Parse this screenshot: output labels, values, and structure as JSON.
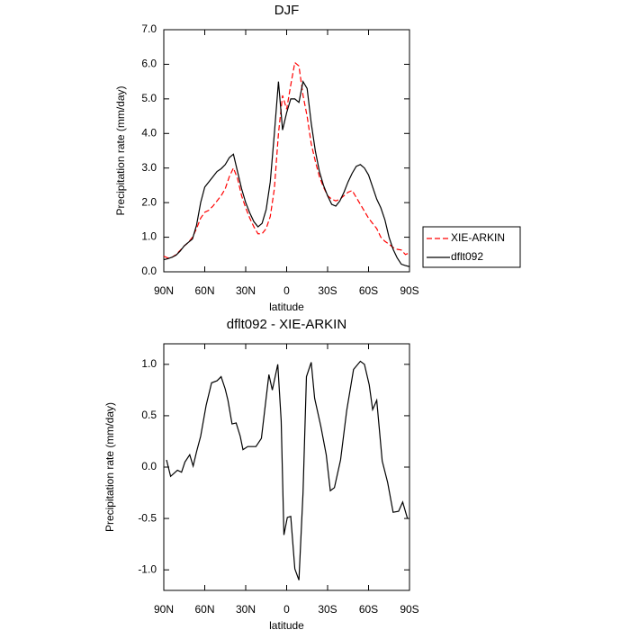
{
  "chart_data": [
    {
      "type": "line",
      "title": "DJF",
      "x_label": "latitude",
      "y_label": "Precipitation rate (mm/day)",
      "x": [
        90,
        87,
        84,
        81,
        78,
        75,
        72,
        69,
        66,
        63,
        60,
        57,
        54,
        51,
        48,
        45,
        42,
        39,
        36,
        33,
        30,
        27,
        24,
        21,
        18,
        15,
        12,
        9,
        6,
        3,
        0,
        -3,
        -6,
        -9,
        -12,
        -15,
        -18,
        -21,
        -24,
        -27,
        -30,
        -33,
        -36,
        -39,
        -42,
        -45,
        -48,
        -51,
        -54,
        -57,
        -60,
        -63,
        -66,
        -69,
        -72,
        -75,
        -78,
        -81,
        -84,
        -87,
        -90
      ],
      "series": [
        {
          "name": "XIE-ARKIN",
          "color": "#ff0000",
          "line_style": "dashed",
          "values": [
            0.45,
            0.4,
            0.42,
            0.5,
            0.62,
            0.75,
            0.85,
            1.0,
            1.25,
            1.55,
            1.72,
            1.78,
            1.9,
            2.05,
            2.2,
            2.4,
            2.75,
            3.0,
            2.7,
            2.2,
            1.85,
            1.55,
            1.3,
            1.1,
            1.1,
            1.25,
            1.6,
            2.4,
            4.0,
            5.1,
            4.7,
            5.4,
            6.05,
            5.95,
            5.1,
            4.5,
            3.7,
            3.2,
            2.75,
            2.45,
            2.2,
            2.1,
            2.05,
            2.1,
            2.2,
            2.3,
            2.35,
            2.15,
            1.95,
            1.75,
            1.55,
            1.4,
            1.25,
            1.0,
            0.88,
            0.8,
            0.7,
            0.65,
            0.63,
            0.5,
            0.55
          ]
        },
        {
          "name": "dflt092",
          "color": "#000000",
          "line_style": "solid",
          "values": [
            0.35,
            0.38,
            0.42,
            0.48,
            0.6,
            0.75,
            0.85,
            0.95,
            1.35,
            2.0,
            2.45,
            2.6,
            2.75,
            2.9,
            2.98,
            3.1,
            3.3,
            3.4,
            2.9,
            2.4,
            2.0,
            1.7,
            1.45,
            1.3,
            1.4,
            1.8,
            2.6,
            4.0,
            5.5,
            4.1,
            4.6,
            5.0,
            5.0,
            4.9,
            5.5,
            5.3,
            4.3,
            3.5,
            2.9,
            2.5,
            2.2,
            1.95,
            1.9,
            2.05,
            2.3,
            2.6,
            2.85,
            3.05,
            3.1,
            3.0,
            2.8,
            2.45,
            2.1,
            1.85,
            1.5,
            1.0,
            0.65,
            0.4,
            0.22,
            0.18,
            0.15
          ]
        }
      ],
      "xlim": [
        90,
        -90
      ],
      "xticks": [
        {
          "value": 90,
          "label": "90N"
        },
        {
          "value": 60,
          "label": "60N"
        },
        {
          "value": 30,
          "label": "30N"
        },
        0,
        {
          "value": -30,
          "label": "30S"
        },
        {
          "value": -60,
          "label": "60S"
        },
        {
          "value": -90,
          "label": "90S"
        }
      ],
      "ylim": [
        0,
        7
      ],
      "yticks": [
        {
          "value": 0,
          "label": "0.0"
        },
        {
          "value": 1,
          "label": "1.0"
        },
        {
          "value": 2,
          "label": "2.0"
        },
        {
          "value": 3,
          "label": "3.0"
        },
        {
          "value": 4,
          "label": "4.0"
        },
        {
          "value": 5,
          "label": "5.0"
        },
        {
          "value": 6,
          "label": "6.0"
        },
        {
          "value": 7,
          "label": "7.0"
        }
      ],
      "legend": "outside right"
    },
    {
      "type": "line",
      "title": "dflt092 - XIE-ARKIN",
      "x_label": "latitude",
      "y_label": "Precipitation rate (mm/day)",
      "x": [
        88,
        85,
        80,
        77,
        74.5,
        71,
        68.5,
        66,
        63,
        59,
        55,
        51,
        48,
        45,
        43,
        40,
        37,
        34,
        32,
        28.5,
        22.5,
        18.5,
        13,
        10.5,
        6.5,
        4,
        2,
        -0.5,
        -3,
        -6,
        -9,
        -12,
        -14.5,
        -18,
        -20.5,
        -25,
        -29,
        -32,
        -35,
        -39.5,
        -44,
        -49,
        -54,
        -57,
        -60.5,
        -63,
        -66,
        -70,
        -74,
        -78,
        -82,
        -85,
        -88.5
      ],
      "color": "#000000",
      "values": [
        0.07,
        -0.09,
        -0.03,
        -0.05,
        0.05,
        0.12,
        0.01,
        0.15,
        0.3,
        0.6,
        0.82,
        0.84,
        0.88,
        0.76,
        0.65,
        0.42,
        0.43,
        0.3,
        0.17,
        0.2,
        0.2,
        0.28,
        0.9,
        0.75,
        1.0,
        0.45,
        -0.66,
        -0.49,
        -0.48,
        -0.99,
        -1.1,
        -0.25,
        0.88,
        1.02,
        0.67,
        0.4,
        0.12,
        -0.23,
        -0.2,
        0.07,
        0.55,
        0.95,
        1.03,
        1.0,
        0.8,
        0.56,
        0.65,
        0.06,
        -0.15,
        -0.44,
        -0.43,
        -0.34,
        -0.5
      ],
      "xlim": [
        90,
        -90
      ],
      "xticks": [
        {
          "value": 90,
          "label": "90N"
        },
        {
          "value": 60,
          "label": "60N"
        },
        {
          "value": 30,
          "label": "30N"
        },
        0,
        {
          "value": -30,
          "label": "30S"
        },
        {
          "value": -60,
          "label": "60S"
        },
        {
          "value": -90,
          "label": "90S"
        }
      ],
      "ylim": [
        -1.2,
        1.2
      ],
      "yticks": [
        {
          "value": -1,
          "label": "-1.0"
        },
        {
          "value": -0.5,
          "label": "-0.5"
        },
        {
          "value": 0,
          "label": "0.0"
        },
        {
          "value": 0.5,
          "label": "0.5"
        },
        {
          "value": 1,
          "label": "1.0"
        }
      ]
    }
  ]
}
